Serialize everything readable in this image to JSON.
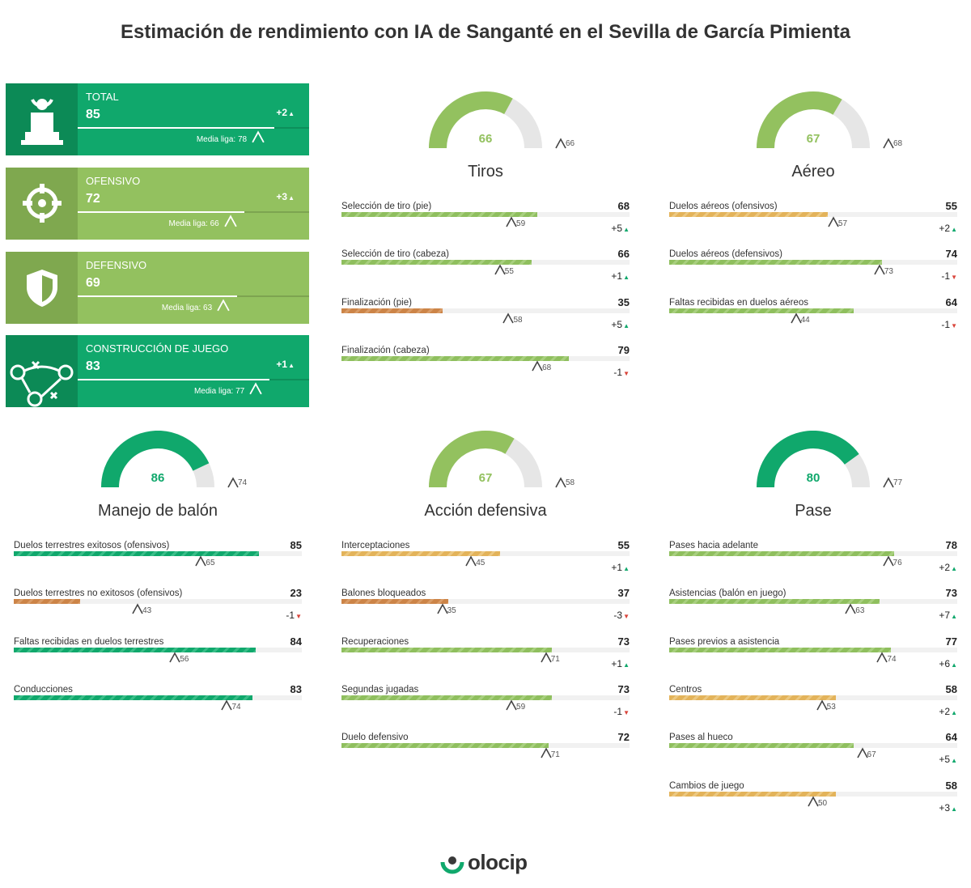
{
  "title": "Estimación de rendimiento con IA de Sanganté en el Sevilla de García Pimienta",
  "colors": {
    "green": "#10a86c",
    "light_green": "#8fbf5e",
    "yellow": "#e3b35a",
    "orange": "#cc8447",
    "down": "#d9443a",
    "up": "#10a86c",
    "gauge_track": "#e6e6e6"
  },
  "summary": [
    {
      "label": "TOTAL",
      "value": 85,
      "league_avg": 78,
      "avg_text": "Media liga: 78",
      "delta": "+2",
      "trend": "up",
      "color": "#10a86c",
      "icon_bg": "#0c8a56",
      "icon": "trophy-icon"
    },
    {
      "label": "OFENSIVO",
      "value": 72,
      "league_avg": 66,
      "avg_text": "Media liga: 66",
      "delta": "+3",
      "trend": "up",
      "color": "#93c15f",
      "icon_bg": "#7fa84f",
      "icon": "crosshair-icon"
    },
    {
      "label": "DEFENSIVO",
      "value": 69,
      "league_avg": 63,
      "avg_text": "Media liga: 63",
      "delta": "",
      "trend": "",
      "color": "#93c15f",
      "icon_bg": "#7fa84f",
      "icon": "shield-icon"
    },
    {
      "label": "CONSTRUCCIÓN DE JUEGO",
      "value": 83,
      "league_avg": 77,
      "avg_text": "Media liga: 77",
      "delta": "+1",
      "trend": "up",
      "color": "#10a86c",
      "icon_bg": "#0c8a56",
      "icon": "tactics-icon"
    }
  ],
  "chart_data": [
    {
      "type": "bar",
      "title": "Tiros",
      "gauge_value": 66,
      "gauge_reference": 66,
      "gauge_color": "#93c15f",
      "xlim": [
        0,
        100
      ],
      "categories": [
        "Selección de tiro (pie)",
        "Selección de tiro (cabeza)",
        "Finalización (pie)",
        "Finalización (cabeza)"
      ],
      "values": [
        68,
        66,
        35,
        79
      ],
      "league_avg": [
        59,
        55,
        58,
        68
      ],
      "deltas": [
        "+5",
        "+1",
        "+5",
        "-1"
      ],
      "trends": [
        "up",
        "up",
        "up",
        "down"
      ],
      "colors": [
        "light",
        "light",
        "orange",
        "light"
      ]
    },
    {
      "type": "bar",
      "title": "Aéreo",
      "gauge_value": 67,
      "gauge_reference": 68,
      "gauge_color": "#93c15f",
      "xlim": [
        0,
        100
      ],
      "categories": [
        "Duelos aéreos (ofensivos)",
        "Duelos aéreos (defensivos)",
        "Faltas recibidas en duelos aéreos"
      ],
      "values": [
        55,
        74,
        64
      ],
      "league_avg": [
        57,
        73,
        44
      ],
      "deltas": [
        "+2",
        "-1",
        "-1"
      ],
      "trends": [
        "up",
        "down",
        "down"
      ],
      "colors": [
        "yellow",
        "light",
        "light"
      ]
    },
    {
      "type": "bar",
      "title": "Manejo de balón",
      "gauge_value": 86,
      "gauge_reference": 74,
      "gauge_color": "#10a86c",
      "xlim": [
        0,
        100
      ],
      "categories": [
        "Duelos terrestres exitosos (ofensivos)",
        "Duelos terrestres no exitosos (ofensivos)",
        "Faltas recibidas en duelos terrestres",
        "Conducciones"
      ],
      "values": [
        85,
        23,
        84,
        83
      ],
      "league_avg": [
        65,
        43,
        56,
        74
      ],
      "deltas": [
        "",
        "-1",
        "",
        ""
      ],
      "trends": [
        "",
        "down",
        "",
        ""
      ],
      "colors": [
        "green",
        "orange",
        "green",
        "green"
      ]
    },
    {
      "type": "bar",
      "title": "Acción defensiva",
      "gauge_value": 67,
      "gauge_reference": 58,
      "gauge_color": "#93c15f",
      "xlim": [
        0,
        100
      ],
      "categories": [
        "Interceptaciones",
        "Balones bloqueados",
        "Recuperaciones",
        "Segundas jugadas",
        "Duelo defensivo"
      ],
      "values": [
        55,
        37,
        73,
        73,
        72
      ],
      "league_avg": [
        45,
        35,
        71,
        59,
        71
      ],
      "deltas": [
        "+1",
        "-3",
        "+1",
        "-1",
        ""
      ],
      "trends": [
        "up",
        "down",
        "up",
        "down",
        ""
      ],
      "colors": [
        "yellow",
        "orange",
        "light",
        "light",
        "light"
      ]
    },
    {
      "type": "bar",
      "title": "Pase",
      "gauge_value": 80,
      "gauge_reference": 77,
      "gauge_color": "#10a86c",
      "xlim": [
        0,
        100
      ],
      "categories": [
        "Pases hacia adelante",
        "Asistencias (balón en juego)",
        "Pases previos a asistencia",
        "Centros",
        "Pases al hueco",
        "Cambios de juego"
      ],
      "values": [
        78,
        73,
        77,
        58,
        64,
        58
      ],
      "league_avg": [
        76,
        63,
        74,
        53,
        67,
        50
      ],
      "deltas": [
        "+2",
        "+7",
        "+6",
        "+2",
        "+5",
        "+3"
      ],
      "trends": [
        "up",
        "up",
        "up",
        "up",
        "up",
        "up"
      ],
      "colors": [
        "light",
        "light",
        "light",
        "yellow",
        "light",
        "yellow"
      ]
    }
  ],
  "logo": {
    "text": "olocip",
    "icon": "olocip-logo-icon"
  }
}
